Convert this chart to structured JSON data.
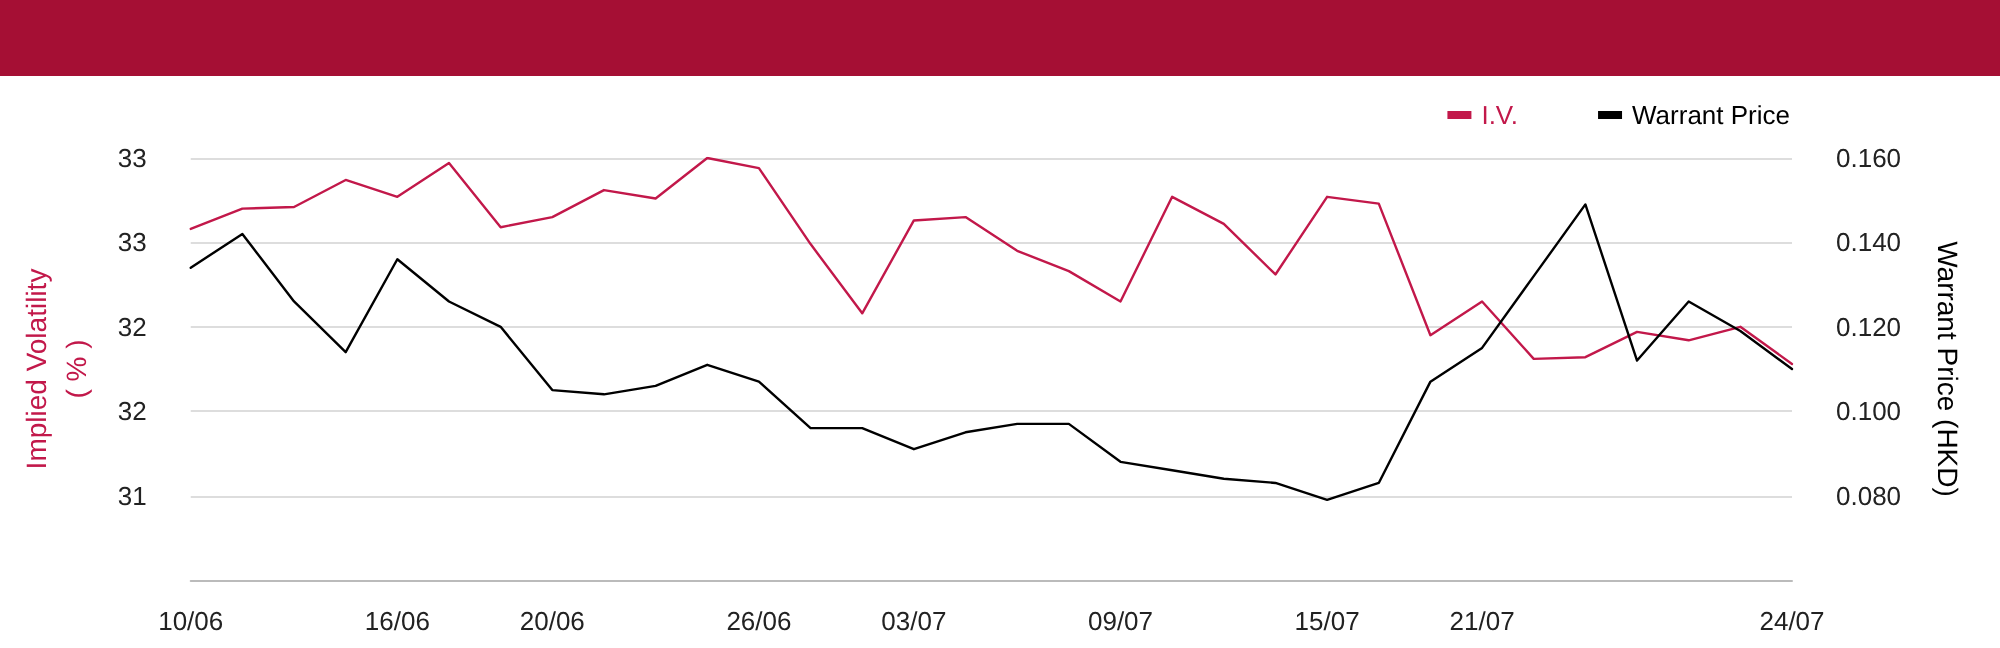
{
  "chart_data": {
    "type": "line",
    "categories": [
      "10/06",
      null,
      null,
      null,
      "16/06",
      null,
      null,
      "20/06",
      null,
      null,
      null,
      "26/06",
      null,
      null,
      "03/07",
      null,
      null,
      null,
      "09/07",
      null,
      null,
      null,
      "15/07",
      null,
      null,
      "21/07",
      null,
      null,
      null,
      null,
      null,
      "24/07"
    ],
    "series": [
      {
        "name": "I.V.",
        "color": "#c2184a",
        "values": [
          32.58,
          32.7,
          32.71,
          32.87,
          32.77,
          32.97,
          32.59,
          32.65,
          32.81,
          32.76,
          33.0,
          32.94,
          32.49,
          32.08,
          32.63,
          32.65,
          32.45,
          32.33,
          32.15,
          32.77,
          32.61,
          32.31,
          32.77,
          32.73,
          31.95,
          32.15,
          31.81,
          31.82,
          31.97,
          31.92,
          32.0,
          31.78
        ]
      },
      {
        "name": "Warrant Price",
        "color": "#000000",
        "axis": "y2",
        "values": [
          0.134,
          0.142,
          0.126,
          0.114,
          0.136,
          0.126,
          0.12,
          0.105,
          0.104,
          0.106,
          0.111,
          0.107,
          0.096,
          0.096,
          0.091,
          0.095,
          0.097,
          0.097,
          0.088,
          0.086,
          0.084,
          0.083,
          0.079,
          0.083,
          0.107,
          0.115,
          0.132,
          0.149,
          0.112,
          0.126,
          0.119,
          0.11
        ]
      }
    ],
    "ylabel": "Implied Volatility\n( % )",
    "y2label": "Warrant Price (HKD)",
    "ylim": [
      30.5,
      33
    ],
    "yticks": [
      {
        "value": 31,
        "label": "31"
      },
      {
        "value": 31.5,
        "label": "32"
      },
      {
        "value": 32,
        "label": "32"
      },
      {
        "value": 32.5,
        "label": "33"
      },
      {
        "value": 33,
        "label": "33"
      }
    ],
    "y2lim": [
      0.06,
      0.16
    ],
    "y2ticks": [
      {
        "value": 0.08,
        "label": "0.080"
      },
      {
        "value": 0.1,
        "label": "0.100"
      },
      {
        "value": 0.12,
        "label": "0.120"
      },
      {
        "value": 0.14,
        "label": "0.140"
      },
      {
        "value": 0.16,
        "label": "0.160"
      }
    ],
    "grid": "y",
    "legend": "top right",
    "marker": "none",
    "line_style": "solid"
  }
}
